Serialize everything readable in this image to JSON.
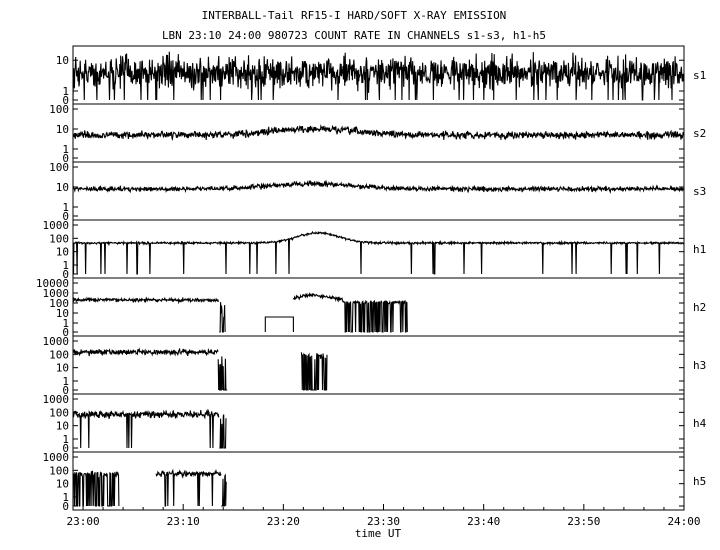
{
  "header": {
    "line1": "INTERBALL-Tail RF15-I HARD/SOFT X-RAY EMISSION",
    "line2": "LBN 23:10 24:00 980723  COUNT RATE IN CHANNELS s1-s3, h1-h5"
  },
  "chart_data": {
    "type": "line",
    "title": "INTERBALL-Tail RF15-I HARD/SOFT X-RAY EMISSION",
    "subtitle": "LBN 23:10 24:00 980723  COUNT RATE IN CHANNELS s1-s3, h1-h5",
    "xlabel": "time UT",
    "x_ticks": [
      "23:00",
      "23:10",
      "23:20",
      "23:30",
      "23:40",
      "23:50",
      "24:00"
    ],
    "xlim_minutes_after_23_00": [
      -1,
      60
    ],
    "yscale": "log",
    "panels": [
      {
        "name": "s1",
        "ymax_decades": 1.3,
        "ytick_labels": [
          "10",
          "1",
          "0"
        ],
        "segments": [
          {
            "t0": -1,
            "t1": 60,
            "level": 4,
            "noise": 0.35,
            "spikes": 0.04
          }
        ]
      },
      {
        "name": "s2",
        "ymax_decades": 2,
        "ytick_labels": [
          "100",
          "10",
          "1",
          "0"
        ],
        "segments": [
          {
            "t0": -1,
            "t1": 60,
            "level": 5,
            "noise": 0.12,
            "bump": {
              "center": 23,
              "width": 6,
              "amp": 0.3
            }
          }
        ]
      },
      {
        "name": "s3",
        "ymax_decades": 2,
        "ytick_labels": [
          "100",
          "10",
          "1",
          "0"
        ],
        "segments": [
          {
            "t0": -1,
            "t1": 60,
            "level": 8,
            "noise": 0.08,
            "bump": {
              "center": 23,
              "width": 6,
              "amp": 0.25
            }
          }
        ]
      },
      {
        "name": "h1",
        "ymax_decades": 3,
        "ytick_labels": [
          "1000",
          "100",
          "10",
          "1",
          "0"
        ],
        "segments": [
          {
            "t0": -1,
            "t1": 60,
            "level": 45,
            "noise": 0.05,
            "spikes": 0.02,
            "bump": {
              "center": 23.5,
              "width": 3,
              "amp": 0.75
            }
          }
        ]
      },
      {
        "name": "h2",
        "ymax_decades": 4,
        "ytick_labels": [
          "10000",
          "1000",
          "100",
          "10",
          "1",
          "0"
        ],
        "segments": [
          {
            "t0": -1,
            "t1": 13.6,
            "level": 200,
            "noise": 0.12
          },
          {
            "t0": 13.6,
            "t1": 14.2,
            "level": 20,
            "noise": 0.8,
            "drop": 0.5
          },
          {
            "t0": 18.2,
            "t1": 21,
            "level": 4,
            "noise": 0
          },
          {
            "t0": 21,
            "t1": 26,
            "level": 150,
            "noise": 0.12,
            "bump": {
              "center": 23,
              "width": 2.5,
              "amp": 0.6
            }
          },
          {
            "t0": 26,
            "t1": 32.4,
            "level": 120,
            "noise": 0.12,
            "drop": 0.35
          }
        ]
      },
      {
        "name": "h3",
        "ymax_decades": 3,
        "ytick_labels": [
          "1000",
          "100",
          "10",
          "1",
          "0"
        ],
        "segments": [
          {
            "t0": -1,
            "t1": 13.5,
            "level": 150,
            "noise": 0.15
          },
          {
            "t0": 13.5,
            "t1": 14.4,
            "level": 30,
            "noise": 0.5,
            "drop": 0.6
          },
          {
            "t0": 21.8,
            "t1": 24.4,
            "level": 80,
            "noise": 0.15,
            "drop": 0.4
          }
        ]
      },
      {
        "name": "h4",
        "ymax_decades": 3,
        "ytick_labels": [
          "1000",
          "100",
          "10",
          "1",
          "0"
        ],
        "segments": [
          {
            "t0": -1,
            "t1": 13.6,
            "level": 70,
            "noise": 0.18,
            "drop": 0.02
          },
          {
            "t0": 13.6,
            "t1": 14.3,
            "level": 25,
            "noise": 0.5,
            "drop": 0.6
          }
        ]
      },
      {
        "name": "h5",
        "ymax_decades": 3,
        "ytick_labels": [
          "1000",
          "100",
          "10",
          "1",
          "0"
        ],
        "segments": [
          {
            "t0": -1,
            "t1": 3.6,
            "level": 50,
            "noise": 0.15,
            "drop": 0.35
          },
          {
            "t0": 7.3,
            "t1": 13.8,
            "level": 55,
            "noise": 0.15,
            "drop": 0.06
          },
          {
            "t0": 13.8,
            "t1": 14.3,
            "level": 30,
            "noise": 0.4,
            "drop": 0.6
          }
        ]
      }
    ]
  }
}
